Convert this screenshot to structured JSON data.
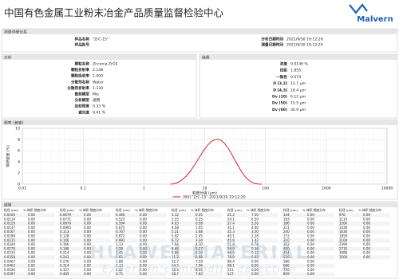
{
  "header": {
    "title": "中国有色金属工业粉末冶金产品质量监督检验中心",
    "logo": "Malvern"
  },
  "details": {
    "heading": "测量详细信息",
    "left": [
      {
        "label": "样品名称",
        "value": "\"ZrC-15\""
      },
      {
        "label": "样品批号"
      }
    ],
    "right": [
      {
        "label": "分析日期时间",
        "value": "2021/9/30 19:12:20"
      },
      {
        "label": "测量日期时间",
        "value": "2021/9/30 19:12:20"
      }
    ]
  },
  "analysis": {
    "heading": "分析",
    "items": [
      {
        "label": "颗粒名称",
        "value": "Zirconia ZrO2"
      },
      {
        "label": "颗粒折射率",
        "value": "2.148"
      },
      {
        "label": "颗粒吸收率",
        "value": "1.000"
      },
      {
        "label": "分散剂名称",
        "value": "Water"
      },
      {
        "label": "分散剂折射率",
        "value": "1.330"
      },
      {
        "label": "散射模型",
        "value": "Mie"
      },
      {
        "label": "分析模型",
        "value": "通用"
      },
      {
        "label": "加权残差",
        "value": "0.33 %"
      },
      {
        "label": "遮光度",
        "value": "9.41 %"
      }
    ]
  },
  "results": {
    "heading": "结果",
    "items": [
      {
        "label": "浓度",
        "value": "0.0146 %"
      },
      {
        "label": "径距",
        "value": "1.855"
      },
      {
        "label": "一致性",
        "value": "0.574"
      },
      {
        "label": "D [3,2]",
        "value": "12.1 μm"
      },
      {
        "label": "D [4,3]",
        "value": "18.4 μm"
      },
      {
        "label": "Dv (10)",
        "value": "6.12 μm"
      },
      {
        "label": "Dv (50)",
        "value": "15.5 μm"
      },
      {
        "label": "Dv (90)",
        "value": "34.9 μm"
      }
    ]
  },
  "chart_data": {
    "type": "line",
    "title": "频率 (兼容)",
    "x_label": "粒度分级 (μm)",
    "y_label": "体积密度 (%)",
    "log_x": true,
    "grid": true,
    "legend": "bottom",
    "xlim": [
      0.01,
      10000
    ],
    "xticks": [
      0.01,
      0.1,
      1,
      10,
      100,
      1000,
      10000
    ],
    "ylim": [
      0,
      10
    ],
    "yticks": [
      0,
      2,
      4,
      6,
      8,
      10
    ],
    "series": [
      {
        "name": "[60] \"ZrC-15\"-2021/9/30 19:12:20",
        "color": "#e0202a",
        "x": [
          2.75,
          3.12,
          3.55,
          4.03,
          4.58,
          5.21,
          5.92,
          6.72,
          7.64,
          8.68,
          9.86,
          11.2,
          12.7,
          14.5,
          16.4,
          18.7,
          21.2,
          24.1,
          27.4,
          31.1,
          35.3,
          40.1,
          45.6,
          51.8,
          58.9,
          66.9,
          76.0,
          86.4
        ],
        "values": [
          0,
          0.05,
          0.25,
          0.58,
          1.05,
          1.68,
          2.45,
          3.34,
          4.3,
          5.27,
          6.19,
          6.98,
          7.59,
          7.96,
          8.05,
          7.83,
          7.3,
          6.5,
          5.5,
          4.4,
          3.3,
          2.28,
          1.42,
          0.78,
          0.36,
          0.12,
          0.02,
          0
        ]
      }
    ]
  },
  "table": {
    "heading": "结果",
    "headers": [
      "粒径 (μm)",
      "% 体积 频度分布"
    ],
    "sizes": [
      "0.0100",
      "0.0114",
      "0.0129",
      "0.0147",
      "0.0167",
      "0.0189",
      "0.0215",
      "0.0244",
      "0.0278",
      "0.0315",
      "0.0358",
      "0.0407",
      "0.0463",
      "0.0526",
      "0.0597",
      "0.0679",
      "0.0771",
      "0.0876",
      "0.0995",
      "0.113",
      "0.128",
      "0.146",
      "0.166",
      "0.188",
      "0.214",
      "0.243",
      "0.276",
      "0.314",
      "0.357",
      "0.405",
      "0.460",
      "0.523",
      "0.594",
      "0.675",
      "0.767",
      "0.872",
      "0.991",
      "1.13",
      "1.28",
      "1.45",
      "1.65",
      "1.88",
      "2.13",
      "2.42",
      "2.75",
      "3.12",
      "3.55",
      "4.03",
      "4.58",
      "5.21",
      "5.92",
      "6.72",
      "7.64",
      "8.68",
      "9.86",
      "11.2",
      "12.7",
      "14.5",
      "16.4",
      "18.7",
      "21.2",
      "24.1",
      "27.4",
      "31.1",
      "35.3",
      "40.1",
      "45.6",
      "51.8",
      "58.9",
      "66.9",
      "76.0",
      "86.4",
      "98.1",
      "111",
      "127",
      "144",
      "163",
      "186",
      "211",
      "240",
      "272",
      "310",
      "352",
      "400",
      "454",
      "516",
      "586",
      "666",
      "756",
      "859",
      "976",
      "1110",
      "1260",
      "1430",
      "1630",
      "1850",
      "2100",
      "2390",
      "2710",
      "3080",
      "3500"
    ],
    "volumes": [
      "0.00",
      "0.00",
      "0.00",
      "0.00",
      "0.00",
      "0.00",
      "0.00",
      "0.00",
      "0.00",
      "0.00",
      "0.00",
      "0.00",
      "0.00",
      "0.00",
      "0.00",
      "0.00",
      "0.00",
      "0.00",
      "0.00",
      "0.00",
      "0.00",
      "0.00",
      "0.00",
      "0.00",
      "0.00",
      "0.00",
      "0.00",
      "0.00",
      "0.00",
      "0.00",
      "0.00",
      "0.00",
      "0.00",
      "0.00",
      "0.00",
      "0.00",
      "0.00",
      "0.00",
      "0.00",
      "0.00",
      "0.00",
      "0.00",
      "0.00",
      "0.00",
      "0.00",
      "0.05",
      "0.25",
      "0.58",
      "1.05",
      "1.68",
      "2.45",
      "3.34",
      "4.30",
      "5.27",
      "6.19",
      "6.98",
      "7.59",
      "7.96",
      "8.05",
      "7.83",
      "7.30",
      "6.50",
      "5.50",
      "4.40",
      "3.30",
      "2.28",
      "1.42",
      "0.78",
      "0.36",
      "0.12",
      "0.02",
      "0.00",
      "0.00",
      "0.00",
      "0.00",
      "0.00",
      "0.00",
      "0.00",
      "0.00",
      "0.00",
      "0.00",
      "0.00",
      "0.00",
      "0.00",
      "0.00",
      "0.00",
      "0.00",
      "0.00",
      "0.00",
      "0.00",
      "0.00",
      "0.00",
      "0.00",
      "0.00",
      "0.00",
      "0.00",
      "0.00",
      "0.00",
      "0.00",
      "0.00",
      "0.00"
    ]
  },
  "watermark": {
    "line1": "HUAWEI MATERIAL",
    "line2": "Expert in commodity detection"
  }
}
